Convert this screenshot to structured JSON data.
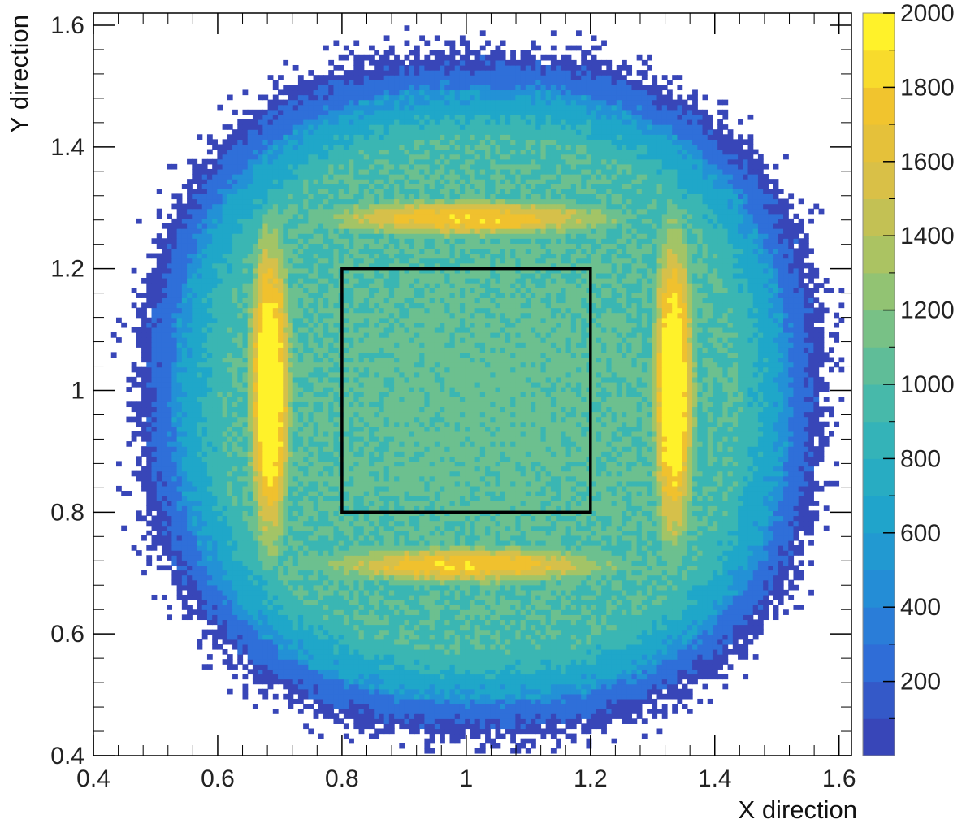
{
  "chart_data": {
    "type": "heatmap",
    "title": "",
    "xlabel": "X direction",
    "ylabel": "Y direction",
    "xlim": [
      0.4,
      1.62
    ],
    "ylim": [
      0.4,
      1.62
    ],
    "x_ticks": [
      "0.4",
      "0.6",
      "0.8",
      "1",
      "1.2",
      "1.4",
      "1.6"
    ],
    "y_ticks": [
      "0.4",
      "0.6",
      "0.8",
      "1",
      "1.2",
      "1.4",
      "1.6"
    ],
    "colorbar": {
      "min": 0,
      "max": 2000,
      "ticks": [
        "200",
        "400",
        "600",
        "800",
        "1000",
        "1200",
        "1400",
        "1600",
        "1800",
        "2000"
      ],
      "colors": [
        "#3846b8",
        "#2f6fd9",
        "#2391d6",
        "#1fa7c9",
        "#3ab6b3",
        "#6cc08f",
        "#a3c466",
        "#d6c04a",
        "#f0c12e",
        "#fff22a"
      ]
    },
    "distribution": {
      "description_shape": "four-cusped square distribution",
      "approx_x_range": [
        0.47,
        1.57
      ],
      "approx_y_range": [
        0.43,
        1.55
      ],
      "peak_count": 1900,
      "peak_locations": [
        {
          "x": 0.68,
          "y": 1.0
        },
        {
          "x": 1.33,
          "y": 1.0
        },
        {
          "x": 1.0,
          "y": 1.28
        },
        {
          "x": 1.0,
          "y": 0.71
        }
      ],
      "center_count": 1100
    },
    "annotations": [
      {
        "type": "rectangle",
        "x_range": [
          0.8,
          1.2
        ],
        "y_range": [
          0.8,
          1.2
        ],
        "color": "#000000"
      }
    ]
  }
}
